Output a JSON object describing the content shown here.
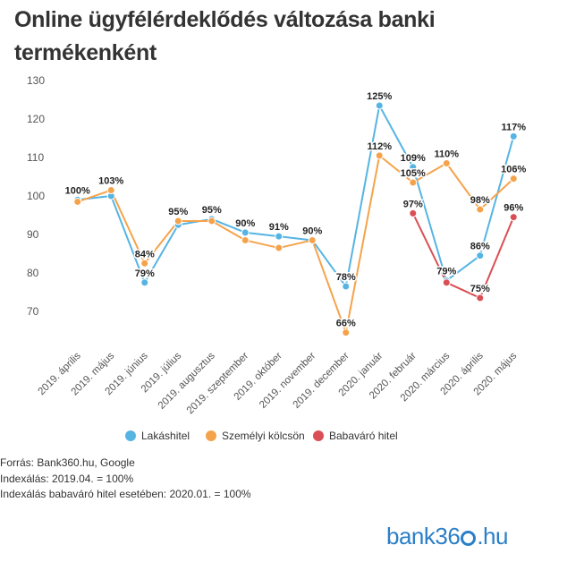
{
  "title": "Online ügyfélérdeklődés változása banki termékenként",
  "notes": {
    "source": "Forrás: Bank360.hu, Google",
    "index1": "Indexálás: 2019.04. = 100%",
    "index2": "Indexálás babaváró hitel esetében: 2020.01. = 100%"
  },
  "logo": {
    "left": "bank36",
    "right": ".hu"
  },
  "colors": {
    "lakashitel": "#56b4e3",
    "szemelyi": "#f5a34b",
    "babavaro": "#d94f55"
  },
  "chart_data": {
    "type": "line",
    "categories": [
      "2019. április",
      "2019. május",
      "2019. június",
      "2019. július",
      "2019. augusztus",
      "2019. szeptember",
      "2019. október",
      "2019. november",
      "2019. december",
      "2020. január",
      "2020. február",
      "2020. március",
      "2020. április",
      "2020. május"
    ],
    "ylim": [
      60,
      130
    ],
    "yticks": [
      70,
      80,
      90,
      100,
      110,
      120,
      130
    ],
    "legend_position": "bottom",
    "series": [
      {
        "name": "Lakáshitel",
        "color": "#56b4e3",
        "values": [
          99,
          100,
          77.5,
          92.5,
          94,
          90.5,
          89.5,
          88.5,
          76.5,
          123.5,
          107.5,
          78,
          84.5,
          115.5
        ]
      },
      {
        "name": "Személyi kölcsön",
        "color": "#f5a34b",
        "values": [
          98.5,
          101.5,
          82.5,
          93.5,
          93.5,
          88.5,
          86.5,
          88.5,
          64.5,
          110.5,
          103.5,
          108.5,
          96.5,
          104.5
        ]
      },
      {
        "name": "Babaváró hitel",
        "color": "#d94f55",
        "values": [
          null,
          null,
          null,
          null,
          null,
          null,
          null,
          null,
          null,
          null,
          95.5,
          77.5,
          73.5,
          94.5
        ]
      }
    ],
    "data_labels": [
      {
        "x": 0,
        "y": 99,
        "text": "100%"
      },
      {
        "x": 1,
        "y": 101.5,
        "text": "103%"
      },
      {
        "x": 2,
        "y": 82.5,
        "text": "84%"
      },
      {
        "x": 2,
        "y": 77.5,
        "text": "79%"
      },
      {
        "x": 3,
        "y": 93.5,
        "text": "95%"
      },
      {
        "x": 4,
        "y": 94,
        "text": "95%"
      },
      {
        "x": 5,
        "y": 90.5,
        "text": "90%"
      },
      {
        "x": 6,
        "y": 89.5,
        "text": "91%"
      },
      {
        "x": 7,
        "y": 88.5,
        "text": "90%"
      },
      {
        "x": 8,
        "y": 76.5,
        "text": "78%"
      },
      {
        "x": 8,
        "y": 64.5,
        "text": "66%"
      },
      {
        "x": 9,
        "y": 123.5,
        "text": "125%"
      },
      {
        "x": 9,
        "y": 110.5,
        "text": "112%"
      },
      {
        "x": 10,
        "y": 107.5,
        "text": "109%"
      },
      {
        "x": 10,
        "y": 103.5,
        "text": "105%"
      },
      {
        "x": 10,
        "y": 95.5,
        "text": "97%"
      },
      {
        "x": 11,
        "y": 108.5,
        "text": "110%"
      },
      {
        "x": 11,
        "y": 78,
        "text": "79%"
      },
      {
        "x": 12,
        "y": 96.5,
        "text": "98%"
      },
      {
        "x": 12,
        "y": 84.5,
        "text": "86%"
      },
      {
        "x": 12,
        "y": 73.5,
        "text": "75%"
      },
      {
        "x": 13,
        "y": 115.5,
        "text": "117%"
      },
      {
        "x": 13,
        "y": 104.5,
        "text": "106%"
      },
      {
        "x": 13,
        "y": 94.5,
        "text": "96%"
      }
    ]
  }
}
